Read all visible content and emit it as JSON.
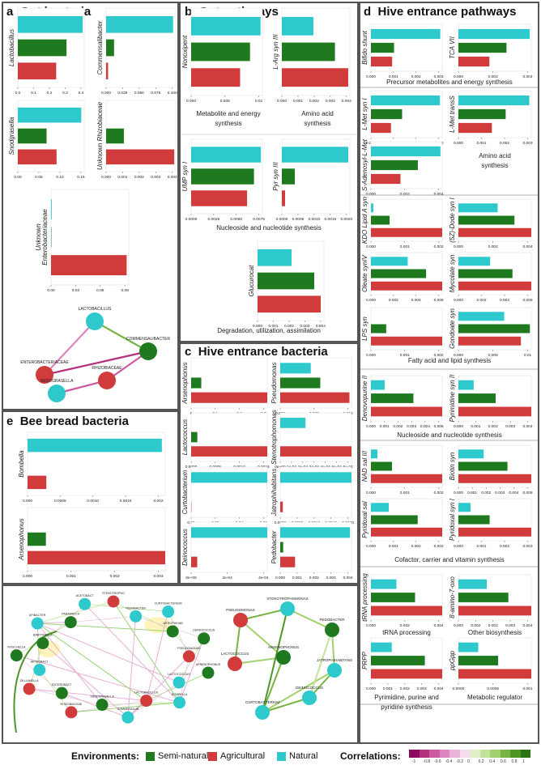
{
  "colors": {
    "semi_natural": "#1f7a1f",
    "agricultural": "#d23b3b",
    "natural": "#2ec9cc"
  },
  "panels": {
    "a": {
      "letter": "a",
      "title": "Gut bacteria"
    },
    "b": {
      "letter": "b",
      "title": "Gut pathways"
    },
    "c": {
      "letter": "c",
      "title": "Hive entrance bacteria"
    },
    "d": {
      "letter": "d",
      "title": "Hive entrance pathways"
    },
    "e": {
      "letter": "e",
      "title": "Bee bread bacteria"
    }
  },
  "captions": {
    "b_metabolite": "Metabolite and energy\nsynthesis",
    "b_amino": "Amino acid\nsynthesis",
    "b_nucleo": "Nucleoside and nucleotide synthesis",
    "b_degrad": "Degradation, utilization, assimilation",
    "d_precursor": "Precursor metabolites and energy synthesis",
    "d_amino": "Amino acid\nsynthesis",
    "d_fatty": "Fatty acid and lipid synthesis",
    "d_nucleo": "Nucleoside and nucleotide synthesis",
    "d_cofactor": "Cofactor, carrier and vitamin synthesis",
    "d_trna": "tRNA processing",
    "d_other": "Other biosynthesis",
    "d_pyrim": "Pyrimidine, purine and\npyridine synthesis",
    "d_metab": "Metabolic regulator"
  },
  "legend": {
    "env_label": "Environments:",
    "env_items": [
      {
        "label": "Semi-natural",
        "color": "#1f7a1f"
      },
      {
        "label": "Agricultural",
        "color": "#d23b3b"
      },
      {
        "label": "Natural",
        "color": "#2ec9cc"
      }
    ],
    "corr_label": "Correlations:",
    "corr_colors": [
      "#8b0a5e",
      "#b3317e",
      "#cc5aa0",
      "#dd85bf",
      "#eab3d9",
      "#f5dcee",
      "#e2f0c9",
      "#c4e39a",
      "#a1d06c",
      "#76b444",
      "#4e9628",
      "#2a7414"
    ],
    "corr_ticks": [
      "-1",
      "-0.8",
      "-0.6",
      "-0.4",
      "-0.2",
      "0",
      "0.2",
      "0.4",
      "0.6",
      "0.8",
      "1"
    ]
  },
  "chart_data": [
    {
      "id": "a1",
      "type": "bar",
      "label": "Lactobacillus",
      "xlim": [
        0,
        0.45
      ],
      "ticks": [
        "0.0",
        "0.1",
        "0.2",
        "0.3",
        "0.4"
      ],
      "values": {
        "natural": 0.44,
        "semi": 0.33,
        "agri": 0.26
      }
    },
    {
      "id": "a2",
      "type": "bar",
      "label": "Commensalibacter",
      "xlim": [
        0,
        0.105
      ],
      "ticks": [
        "0.000",
        "0.025",
        "0.050",
        "0.075",
        "0.100"
      ],
      "values": {
        "natural": 0.101,
        "semi": 0.012,
        "agri": 0.003
      }
    },
    {
      "id": "a3",
      "type": "bar",
      "label": "Snodgrasella",
      "xlim": [
        0,
        0.18
      ],
      "ticks": [
        "0.00",
        "0.05",
        "0.10",
        "0.15"
      ],
      "values": {
        "natural": 0.172,
        "semi": 0.078,
        "agri": 0.105
      }
    },
    {
      "id": "a4",
      "type": "bar",
      "label": "Unknown Rhizobiaceae",
      "xlim": [
        0,
        0.0047
      ],
      "ticks": [
        "0.000",
        "0.001",
        "0.002",
        "0.003",
        "0.004"
      ],
      "values": {
        "natural": 0.0,
        "semi": 0.0012,
        "agri": 0.0046
      }
    },
    {
      "id": "a5",
      "type": "bar",
      "label": "Unknown\nEnterobacteriaceae",
      "xlim": [
        0,
        0.11
      ],
      "ticks": [
        "0.00",
        "0.03",
        "0.06",
        "0.09"
      ],
      "values": {
        "natural": 0.001,
        "semi": 0.0005,
        "agri": 0.107
      }
    },
    {
      "id": "b1",
      "type": "bar",
      "label": "Nonoxipent",
      "xlim": [
        0,
        0.0115
      ],
      "ticks": [
        "0.000",
        "0.005",
        "0.01"
      ],
      "values": {
        "natural": 0.0112,
        "semi": 0.0095,
        "agri": 0.0079
      }
    },
    {
      "id": "b2",
      "type": "bar",
      "label": "L-Arg syn III",
      "xlim": [
        0,
        0.0041
      ],
      "ticks": [
        "0.000",
        "0.001",
        "0.002",
        "0.003",
        "0.004"
      ],
      "values": {
        "natural": 0.0019,
        "semi": 0.0032,
        "agri": 0.004
      }
    },
    {
      "id": "b3",
      "type": "bar",
      "label": "UMP syn I",
      "xlim": [
        0,
        0.0093
      ],
      "ticks": [
        "0.0000",
        "0.0025",
        "0.0050",
        "0.0075"
      ],
      "values": {
        "natural": 0.0091,
        "semi": 0.0082,
        "agri": 0.0073
      }
    },
    {
      "id": "b4",
      "type": "bar",
      "label": "Pyr syn III",
      "xlim": [
        0,
        0.0021
      ],
      "ticks": [
        "0.0000",
        "0.0005",
        "0.0010",
        "0.0015",
        "0.0020"
      ],
      "values": {
        "natural": 0.00205,
        "semi": 0.0004,
        "agri": 0.0001
      }
    },
    {
      "id": "b5",
      "type": "bar",
      "label": "Glucurocat",
      "xlim": [
        0,
        0.0041
      ],
      "ticks": [
        "0.000",
        "0.001",
        "0.002",
        "0.003",
        "0.004"
      ],
      "values": {
        "natural": 0.0021,
        "semi": 0.0035,
        "agri": 0.0039
      }
    },
    {
      "id": "c1",
      "type": "bar",
      "label": "Arsenophonus",
      "xlim": [
        0,
        0.3
      ],
      "ticks": [
        "0",
        "0.1",
        "0.2",
        "0.3"
      ],
      "values": {
        "natural": 0.0,
        "semi": 0.04,
        "agri": 0.3
      }
    },
    {
      "id": "c2",
      "type": "bar",
      "label": "Pseudomonas",
      "xlim": [
        0,
        0.0105
      ],
      "ticks": [
        "0.000",
        "0.005",
        "0.010"
      ],
      "values": {
        "natural": 0.0045,
        "semi": 0.0059,
        "agri": 0.0102
      }
    },
    {
      "id": "c3",
      "type": "bar",
      "label": "Lactococcus",
      "xlim": [
        0,
        0.0016
      ],
      "ticks": [
        "0.0000",
        "0.0005",
        "0.0010",
        "0.0015"
      ],
      "values": {
        "natural": 0.0,
        "semi": 0.00013,
        "agri": 0.0016
      }
    },
    {
      "id": "c4",
      "type": "bar",
      "label": "Stenotrophomonas",
      "xlim": [
        0,
        0.00062
      ],
      "ticks": [
        "0e+00",
        "1e-04",
        "2e-04",
        "3e-04",
        "4e-04",
        "5e-04",
        "6e-04"
      ],
      "values": {
        "natural": 0.00022,
        "semi": 0.0,
        "agri": 0.00062
      }
    },
    {
      "id": "c5",
      "type": "bar",
      "label": "Curtobacterium",
      "xlim": [
        0,
        0.074
      ],
      "ticks": [
        "0.00",
        "0.02",
        "0.04",
        "0.06"
      ],
      "values": {
        "natural": 0.074,
        "semi": 0.0,
        "agri": 0.0003
      }
    },
    {
      "id": "c6",
      "type": "bar",
      "label": "Jatrophihabitans",
      "xlim": [
        0,
        0.0022
      ],
      "ticks": [
        "0.0000",
        "0.0005",
        "0.0010",
        "0.0015",
        "0.0020"
      ],
      "values": {
        "natural": 0.0022,
        "semi": 0.0,
        "agri": 8e-05
      }
    },
    {
      "id": "c7",
      "type": "bar",
      "label": "Deinococcus",
      "xlim": [
        0,
        0.0005
      ],
      "ticks": [
        "0e+00",
        "2e-04",
        "4e-04"
      ],
      "values": {
        "natural": 0.0005,
        "semi": 0.0,
        "agri": 4e-05
      }
    },
    {
      "id": "c8",
      "type": "bar",
      "label": "Pedobacter",
      "xlim": [
        0,
        0.0048
      ],
      "ticks": [
        "0.000",
        "0.001",
        "0.002",
        "0.003",
        "0.004"
      ],
      "values": {
        "natural": 0.0047,
        "semi": 0.0002,
        "agri": 0.001
      }
    },
    {
      "id": "d1",
      "type": "bar",
      "label": "Bifido shunt",
      "xlim": [
        0,
        0.0037
      ],
      "ticks": [
        "0.000",
        "0.001",
        "0.002",
        "0.003"
      ],
      "values": {
        "natural": 0.0036,
        "semi": 0.0012,
        "agri": 0.0011
      }
    },
    {
      "id": "d2",
      "type": "bar",
      "label": "TCA VII",
      "xlim": [
        0,
        0.0047
      ],
      "ticks": [
        "0.000",
        "0.002",
        "0.004"
      ],
      "values": {
        "natural": 0.0046,
        "semi": 0.0031,
        "agri": 0.002
      }
    },
    {
      "id": "d3",
      "type": "bar",
      "label": "L-Met syn I",
      "xlim": [
        0,
        0.0032
      ],
      "ticks": [
        "0.000",
        "0.001",
        "0.002",
        "0.003"
      ],
      "values": {
        "natural": 0.0031,
        "semi": 0.0014,
        "agri": 0.0009
      }
    },
    {
      "id": "d4",
      "type": "bar",
      "label": "L-Met transS",
      "xlim": [
        0,
        0.0037
      ],
      "ticks": [
        "0.000",
        "0.001",
        "0.002",
        "0.003"
      ],
      "values": {
        "natural": 0.0036,
        "semi": 0.0024,
        "agri": 0.0017
      }
    },
    {
      "id": "d5",
      "type": "bar",
      "label": "S-Adenosyl-L-Met",
      "xlim": [
        0,
        0.0041
      ],
      "ticks": [
        "0.000",
        "0.002",
        "0.004"
      ],
      "values": {
        "natural": 0.004,
        "semi": 0.0027,
        "agri": 0.0017
      }
    },
    {
      "id": "d6",
      "type": "bar",
      "label": "KDO Lipid A syn",
      "xlim": [
        0,
        0.0021
      ],
      "ticks": [
        "0.000",
        "0.001",
        "0.002"
      ],
      "values": {
        "natural": 7e-05,
        "semi": 0.00055,
        "agri": 0.0021
      }
    },
    {
      "id": "d7",
      "type": "bar",
      "label": "(5Z)-Dode syn I",
      "xlim": [
        0,
        0.0052
      ],
      "ticks": [
        "0.000",
        "0.002",
        "0.004"
      ],
      "values": {
        "natural": 0.0028,
        "semi": 0.004,
        "agri": 0.0052
      }
    },
    {
      "id": "d8",
      "type": "bar",
      "label": "Oleate synIV",
      "xlim": [
        0,
        0.0062
      ],
      "ticks": [
        "0.000",
        "0.002",
        "0.004",
        "0.006"
      ],
      "values": {
        "natural": 0.0032,
        "semi": 0.0048,
        "agri": 0.0062
      }
    },
    {
      "id": "d9",
      "type": "bar",
      "label": "Mycolate syn",
      "xlim": [
        0,
        0.0062
      ],
      "ticks": [
        "0.000",
        "0.002",
        "0.004",
        "0.006"
      ],
      "values": {
        "natural": 0.0027,
        "semi": 0.0046,
        "agri": 0.0062
      }
    },
    {
      "id": "d10",
      "type": "bar",
      "label": "LPS syn",
      "xlim": [
        0,
        0.0021
      ],
      "ticks": [
        "0.000",
        "0.001",
        "0.002"
      ],
      "values": {
        "natural": 0.0,
        "semi": 0.00045,
        "agri": 0.0021
      }
    },
    {
      "id": "d11",
      "type": "bar",
      "label": "Gondoate syn",
      "xlim": [
        0,
        0.0105
      ],
      "ticks": [
        "0.000",
        "0.005",
        "0.01"
      ],
      "values": {
        "natural": 0.0066,
        "semi": 0.0103,
        "agri": 0.009
      }
    },
    {
      "id": "d12",
      "type": "bar",
      "label": "Denovopurine II",
      "xlim": [
        0,
        0.0052
      ],
      "ticks": [
        "0.000",
        "0.001",
        "0.002",
        "0.003",
        "0.004",
        "0.005"
      ],
      "values": {
        "natural": 0.001,
        "semi": 0.0031,
        "agri": 0.0052
      }
    },
    {
      "id": "d13",
      "type": "bar",
      "label": "Pyrimidine syn II",
      "xlim": [
        0,
        0.0043
      ],
      "ticks": [
        "0.000",
        "0.001",
        "0.002",
        "0.003",
        "0.004"
      ],
      "values": {
        "natural": 0.0009,
        "semi": 0.0022,
        "agri": 0.0043
      }
    },
    {
      "id": "d14",
      "type": "bar",
      "label": "NAD sal III",
      "xlim": [
        0,
        0.0022
      ],
      "ticks": [
        "0.000",
        "0.001",
        "0.002"
      ],
      "values": {
        "natural": 0.0002,
        "semi": 0.00065,
        "agri": 0.0022
      }
    },
    {
      "id": "d15",
      "type": "bar",
      "label": "Biotin syn",
      "xlim": [
        0,
        0.0052
      ],
      "ticks": [
        "0.000",
        "0.001",
        "0.002",
        "0.003",
        "0.004",
        "0.005"
      ],
      "values": {
        "natural": 0.0018,
        "semi": 0.0035,
        "agri": 0.0052
      }
    },
    {
      "id": "d16",
      "type": "bar",
      "label": "Pyridoxal sal",
      "xlim": [
        0,
        0.0032
      ],
      "ticks": [
        "0.000",
        "0.001",
        "0.002",
        "0.003"
      ],
      "values": {
        "natural": 0.0008,
        "semi": 0.0021,
        "agri": 0.0032
      }
    },
    {
      "id": "d17",
      "type": "bar",
      "label": "Pyridoxal syn I",
      "xlim": [
        0,
        0.0042
      ],
      "ticks": [
        "0.000",
        "0.001",
        "0.002",
        "0.003"
      ],
      "values": {
        "natural": 0.0007,
        "semi": 0.0018,
        "agri": 0.0042
      }
    },
    {
      "id": "d18",
      "type": "bar",
      "label": "tRNA processing",
      "xlim": [
        0,
        0.0042
      ],
      "ticks": [
        "0.000",
        "0.002",
        "0.004"
      ],
      "values": {
        "natural": 0.0015,
        "semi": 0.0026,
        "agri": 0.0042
      }
    },
    {
      "id": "d19",
      "type": "bar",
      "label": "8-amino-7-oxo",
      "xlim": [
        0,
        0.0054
      ],
      "ticks": [
        "0.000",
        "0.002",
        "0.002",
        "0.003",
        "0.004"
      ],
      "values": {
        "natural": 0.0021,
        "semi": 0.0037,
        "agri": 0.0054
      }
    },
    {
      "id": "d20",
      "type": "bar",
      "label": "PRPP",
      "xlim": [
        0,
        0.0041
      ],
      "ticks": [
        "0.000",
        "0.001",
        "0.002",
        "0.003",
        "0.004"
      ],
      "values": {
        "natural": 0.0012,
        "semi": 0.0031,
        "agri": 0.0041
      }
    },
    {
      "id": "d21",
      "type": "bar",
      "label": "ppGpp",
      "xlim": [
        0,
        0.0011
      ],
      "ticks": [
        "0.0000",
        "0.0005",
        "0.001"
      ],
      "values": {
        "natural": 0.0003,
        "semi": 0.0006,
        "agri": 0.0011
      }
    },
    {
      "id": "e1",
      "type": "bar",
      "label": "Bombella",
      "xlim": [
        0,
        0.00205
      ],
      "ticks": [
        "0.000",
        "0.0005",
        "0.0010",
        "0.0015",
        "0.002"
      ],
      "values": {
        "natural": 0.002,
        "semi": 0.0,
        "agri": 0.00028
      }
    },
    {
      "id": "e2",
      "type": "bar",
      "label": "Arsenophonus",
      "xlim": [
        0,
        0.003
      ],
      "ticks": [
        "0.000",
        "0.001",
        "0.002",
        "0.003"
      ],
      "values": {
        "natural": 0.0,
        "semi": 0.0004,
        "agri": 0.003
      }
    }
  ],
  "networks": {
    "a": {
      "nodes": [
        {
          "id": "LACTOBACILLUS",
          "env": "natural"
        },
        {
          "id": "COMMENSALIBACTER",
          "env": "semi"
        },
        {
          "id": "ENTEROBACTERIACEAE",
          "env": "agri"
        },
        {
          "id": "RHIZOBIACEAE",
          "env": "agri"
        },
        {
          "id": "SNODGRASELLA",
          "env": "natural"
        }
      ],
      "edges": [
        {
          "s": "LACTOBACILLUS",
          "t": "COMMENSALIBACTER",
          "r": 0.7
        },
        {
          "s": "ENTEROBACTERIACEAE",
          "t": "LACTOBACILLUS",
          "r": -0.5
        },
        {
          "s": "ENTEROBACTERIACEAE",
          "t": "COMMENSALIBACTER",
          "r": -0.9
        },
        {
          "s": "RHIZOBIACEAE",
          "t": "COMMENSALIBACTER",
          "r": -0.6
        },
        {
          "s": "RHIZOBIACEAE",
          "t": "SNODGRASELLA",
          "r": -0.6
        }
      ]
    },
    "bottom_left": {
      "nodes": [
        {
          "id": "STENOTROPHO",
          "env": "agri"
        },
        {
          "id": "PEDOBACTER",
          "env": "natural"
        },
        {
          "id": "CURTOBACTERIUM",
          "env": "natural"
        },
        {
          "id": "JATROPHIHAB",
          "env": "semi"
        },
        {
          "id": "DEINOCOCCUS",
          "env": "semi"
        },
        {
          "id": "PSEUDOMONAS",
          "env": "agri"
        },
        {
          "id": "ARSENOPHONUS",
          "env": "semi"
        },
        {
          "id": "LACTOCOCCUS",
          "env": "natural"
        },
        {
          "id": "BOMBELLA",
          "env": "natural"
        },
        {
          "id": "LACTOBACILLUS",
          "env": "agri"
        },
        {
          "id": "COMMENSALIB",
          "env": "natural"
        },
        {
          "id": "SNODGRASELLA",
          "env": "semi"
        },
        {
          "id": "RHIZOBIACEAE",
          "env": "agri"
        },
        {
          "id": "ENTEROBACT",
          "env": "semi"
        },
        {
          "id": "GILLIAMELLA",
          "env": "agri"
        },
        {
          "id": "BIFIDOBACT",
          "env": "natural"
        },
        {
          "id": "FRISCHELLA",
          "env": "semi"
        },
        {
          "id": "BARTONELLA",
          "env": "semi"
        },
        {
          "id": "APIBACTER",
          "env": "natural"
        },
        {
          "id": "PARASACCH",
          "env": "semi"
        },
        {
          "id": "ACETOBACT",
          "env": "natural"
        }
      ]
    },
    "bottom_right": {
      "nodes": [
        {
          "id": "STENOTROPHOMONAS",
          "env": "natural"
        },
        {
          "id": "PSEUDOMONAS",
          "env": "agri"
        },
        {
          "id": "PEDOBACTER",
          "env": "semi"
        },
        {
          "id": "ARSENOPHONUS",
          "env": "semi"
        },
        {
          "id": "LACTOCOCCUS",
          "env": "agri"
        },
        {
          "id": "JATROPHIHABITANS",
          "env": "natural"
        },
        {
          "id": "DEINOCOCCUS",
          "env": "natural"
        },
        {
          "id": "CURTOBACTERIUM",
          "env": "natural"
        }
      ]
    }
  }
}
